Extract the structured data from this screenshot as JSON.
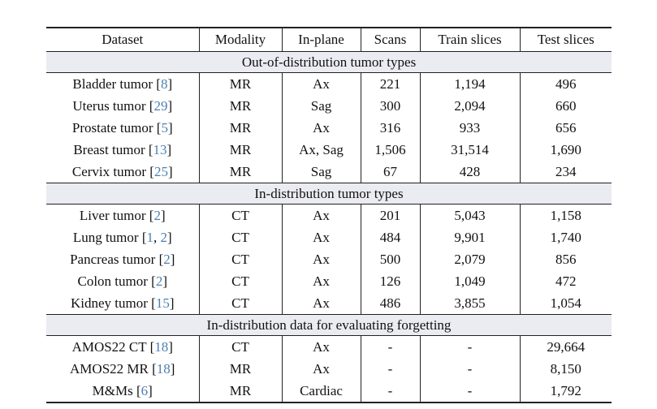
{
  "page": {
    "background": "#ffffff"
  },
  "table": {
    "columns": [
      "Dataset",
      "Modality",
      "In-plane",
      "Scans",
      "Train slices",
      "Test slices"
    ],
    "colors": {
      "citation_blue": "#4d80b3",
      "band_background": "#ebebf2",
      "border": "#222222",
      "text": "#111111"
    },
    "sections": [
      {
        "title": "Out-of-distribution tumor types",
        "rows": [
          {
            "dataset": "Bladder tumor",
            "cites": [
              "8"
            ],
            "modality": "MR",
            "inplane": "Ax",
            "scans": "221",
            "train": "1,194",
            "test": "496"
          },
          {
            "dataset": "Uterus tumor",
            "cites": [
              "29"
            ],
            "modality": "MR",
            "inplane": "Sag",
            "scans": "300",
            "train": "2,094",
            "test": "660"
          },
          {
            "dataset": "Prostate tumor",
            "cites": [
              "5"
            ],
            "modality": "MR",
            "inplane": "Ax",
            "scans": "316",
            "train": "933",
            "test": "656"
          },
          {
            "dataset": "Breast tumor",
            "cites": [
              "13"
            ],
            "modality": "MR",
            "inplane": "Ax, Sag",
            "scans": "1,506",
            "train": "31,514",
            "test": "1,690"
          },
          {
            "dataset": "Cervix tumor",
            "cites": [
              "25"
            ],
            "modality": "MR",
            "inplane": "Sag",
            "scans": "67",
            "train": "428",
            "test": "234"
          }
        ]
      },
      {
        "title": "In-distribution tumor types",
        "rows": [
          {
            "dataset": "Liver tumor",
            "cites": [
              "2"
            ],
            "modality": "CT",
            "inplane": "Ax",
            "scans": "201",
            "train": "5,043",
            "test": "1,158"
          },
          {
            "dataset": "Lung tumor",
            "cites": [
              "1",
              "2"
            ],
            "modality": "CT",
            "inplane": "Ax",
            "scans": "484",
            "train": "9,901",
            "test": "1,740"
          },
          {
            "dataset": "Pancreas tumor",
            "cites": [
              "2"
            ],
            "modality": "CT",
            "inplane": "Ax",
            "scans": "500",
            "train": "2,079",
            "test": "856"
          },
          {
            "dataset": "Colon tumor",
            "cites": [
              "2"
            ],
            "modality": "CT",
            "inplane": "Ax",
            "scans": "126",
            "train": "1,049",
            "test": "472"
          },
          {
            "dataset": "Kidney tumor",
            "cites": [
              "15"
            ],
            "modality": "CT",
            "inplane": "Ax",
            "scans": "486",
            "train": "3,855",
            "test": "1,054"
          }
        ]
      },
      {
        "title": "In-distribution data for evaluating forgetting",
        "rows": [
          {
            "dataset": "AMOS22 CT",
            "cites": [
              "18"
            ],
            "modality": "CT",
            "inplane": "Ax",
            "scans": "-",
            "train": "-",
            "test": "29,664"
          },
          {
            "dataset": "AMOS22 MR",
            "cites": [
              "18"
            ],
            "modality": "MR",
            "inplane": "Ax",
            "scans": "-",
            "train": "-",
            "test": "8,150"
          },
          {
            "dataset": "M&Ms",
            "cites": [
              "6"
            ],
            "modality": "MR",
            "inplane": "Cardiac",
            "scans": "-",
            "train": "-",
            "test": "1,792"
          }
        ]
      }
    ]
  }
}
